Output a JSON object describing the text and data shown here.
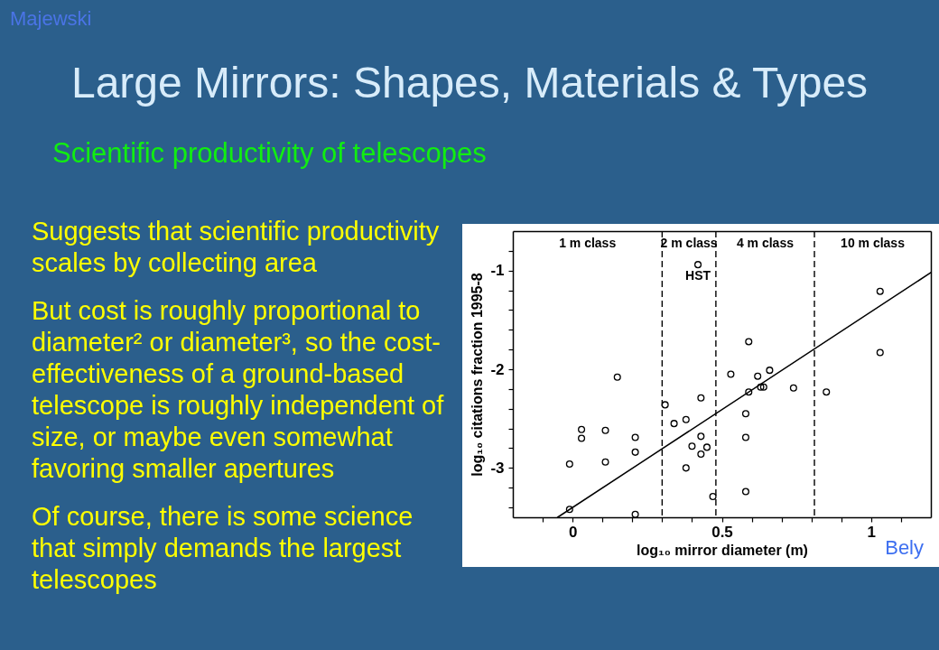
{
  "chart_data": {
    "type": "scatter",
    "title": "Large Mirrors: Shapes, Materials & Types",
    "subtitle": "Scientific productivity of telescopes",
    "xlabel": "log₁₀ mirror diameter (m)",
    "ylabel": "log₁₀ citations fraction 1995-8",
    "xlim": [
      -0.2,
      1.2
    ],
    "ylim": [
      -3.5,
      -0.6
    ],
    "xticks": [
      {
        "value": -0.1,
        "label": null
      },
      0,
      {
        "value": 0.1,
        "label": null
      },
      {
        "value": 0.2,
        "label": null
      },
      {
        "value": 0.3,
        "label": null
      },
      {
        "value": 0.4,
        "label": null
      },
      0.5,
      {
        "value": 0.6,
        "label": null
      },
      {
        "value": 0.7,
        "label": null
      },
      {
        "value": 0.8,
        "label": null
      },
      {
        "value": 0.9,
        "label": null
      },
      1,
      {
        "value": 1.1,
        "label": null
      }
    ],
    "yticks": [
      {
        "value": -3.4,
        "label": null
      },
      {
        "value": -3.2,
        "label": null
      },
      -3,
      {
        "value": -2.8,
        "label": null
      },
      {
        "value": -2.6,
        "label": null
      },
      {
        "value": -2.4,
        "label": null
      },
      {
        "value": -2.2,
        "label": null
      },
      -2,
      {
        "value": -1.8,
        "label": null
      },
      {
        "value": -1.6,
        "label": null
      },
      {
        "value": -1.4,
        "label": null
      },
      {
        "value": -1.2,
        "label": null
      },
      -1,
      {
        "value": -0.8,
        "label": null
      }
    ],
    "series": [
      {
        "color": "#000000",
        "marker": "circle",
        "x": [
          -0.01,
          -0.01,
          0.03,
          0.03,
          0.11,
          0.11,
          0.15,
          0.21,
          0.21,
          0.21,
          0.31,
          0.34,
          0.38,
          0.43,
          0.43,
          0.4,
          0.45,
          0.43,
          0.38,
          0.47,
          0.53,
          0.59,
          0.62,
          0.66,
          0.63,
          0.64,
          0.59,
          0.74,
          0.58,
          0.58,
          0.58,
          0.85,
          1.03,
          1.03
        ],
        "values": [
          -2.96,
          -3.42,
          -2.61,
          -2.7,
          -2.62,
          -2.94,
          -2.08,
          -2.69,
          -2.84,
          -3.47,
          -2.36,
          -2.55,
          -2.51,
          -2.29,
          -2.68,
          -2.78,
          -2.79,
          -2.86,
          -3.0,
          -3.29,
          -2.05,
          -1.72,
          -2.07,
          -2.01,
          -2.18,
          -2.18,
          -2.23,
          -2.19,
          -2.45,
          -2.69,
          -3.24,
          -2.23,
          -1.21,
          -1.83
        ]
      },
      {
        "color": "#000000",
        "marker": "circle",
        "x": [
          0.42
        ],
        "values": [
          -0.94
        ]
      },
      {
        "type": "line",
        "color": "#000000",
        "line_style": "solid",
        "x": [
          -0.05,
          1.2
        ],
        "values": [
          -3.5,
          -1.02
        ]
      }
    ],
    "ref_lines": [
      {
        "axis": "x",
        "value": 0.3,
        "color": "#000000",
        "line_style": "dashed"
      },
      {
        "axis": "x",
        "value": 0.48,
        "color": "#000000",
        "line_style": "dashed"
      },
      {
        "axis": "x",
        "value": 0.81,
        "color": "#000000",
        "line_style": "dashed"
      }
    ],
    "annotations": [
      "Majewski",
      "Suggests that scientific productivity scales by collecting area",
      "But cost is roughly proportional to diameter² or diameter³, so the cost-effectiveness of a ground-based telescope is roughly independent of size, or maybe even somewhat favoring smaller apertures",
      "Of course, there is some science that simply demands the largest telescopes",
      "1 m class",
      "2 m class",
      "4 m class",
      "10 m class",
      {
        "text": "HST",
        "x": 0.42,
        "y": -0.94
      },
      "Bely"
    ]
  }
}
